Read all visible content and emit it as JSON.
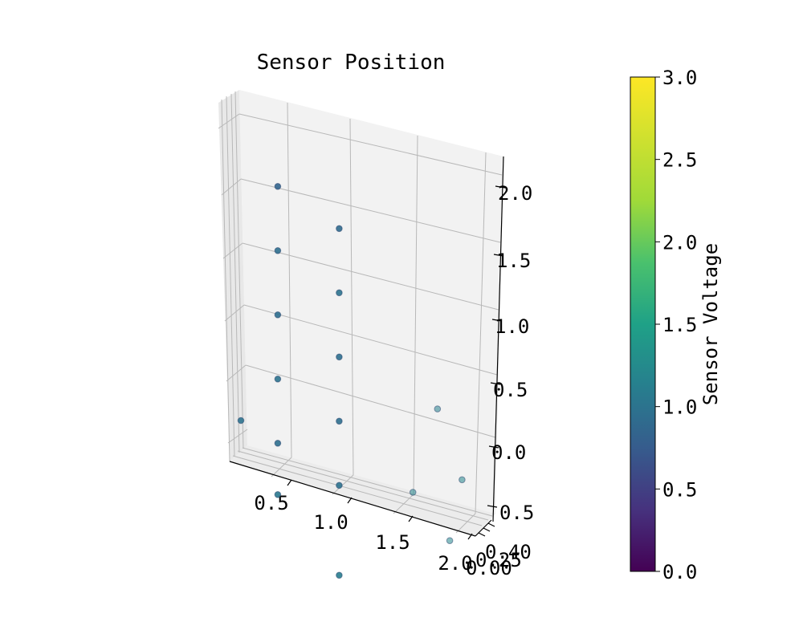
{
  "chart_data": {
    "type": "scatter",
    "title": "Sensor Position",
    "projection": "3d",
    "axes": {
      "x": {
        "tick_labels": [
          "0.5",
          "1.0",
          "1.5",
          "2.0"
        ]
      },
      "y": {
        "tick_labels": [
          "0.00",
          "0.25",
          "0.40"
        ]
      },
      "z": {
        "tick_labels": [
          "2.0",
          "1.5",
          "1.0",
          "0.5",
          "0.0",
          "0.5"
        ]
      }
    },
    "points": [
      {
        "x": 0.5,
        "z": 2.0,
        "voltage": 0.85
      },
      {
        "x": 1.0,
        "z": 1.8,
        "voltage": 0.9
      },
      {
        "x": 0.5,
        "z": 1.5,
        "voltage": 0.95
      },
      {
        "x": 1.0,
        "z": 1.3,
        "voltage": 1.0
      },
      {
        "x": 0.5,
        "z": 1.0,
        "voltage": 0.95
      },
      {
        "x": 1.0,
        "z": 0.8,
        "voltage": 0.95
      },
      {
        "x": 0.5,
        "z": 0.5,
        "voltage": 1.0
      },
      {
        "x": 1.0,
        "z": 0.3,
        "voltage": 0.95
      },
      {
        "x": 0.5,
        "z": 0.0,
        "voltage": 0.95
      },
      {
        "x": 1.0,
        "z": -0.2,
        "voltage": 1.0
      },
      {
        "x": 0.2,
        "z": 0.1,
        "voltage": 1.0
      },
      {
        "x": 0.5,
        "z": -0.4,
        "voltage": 1.05
      },
      {
        "x": 1.0,
        "z": -0.9,
        "voltage": 1.1
      },
      {
        "x": 1.8,
        "z": 0.6,
        "voltage": 1.15
      },
      {
        "x": 2.0,
        "z": 0.1,
        "voltage": 1.2
      },
      {
        "x": 1.6,
        "z": -0.1,
        "voltage": 1.2
      },
      {
        "x": 1.9,
        "z": -0.4,
        "voltage": 1.2
      }
    ],
    "colorbar": {
      "label": "Sensor Voltage",
      "min": 0.0,
      "max": 3.0,
      "ticks": [
        "0.0",
        "0.5",
        "1.0",
        "1.5",
        "2.0",
        "2.5",
        "3.0"
      ],
      "colormap": "viridis"
    },
    "grid": true
  }
}
